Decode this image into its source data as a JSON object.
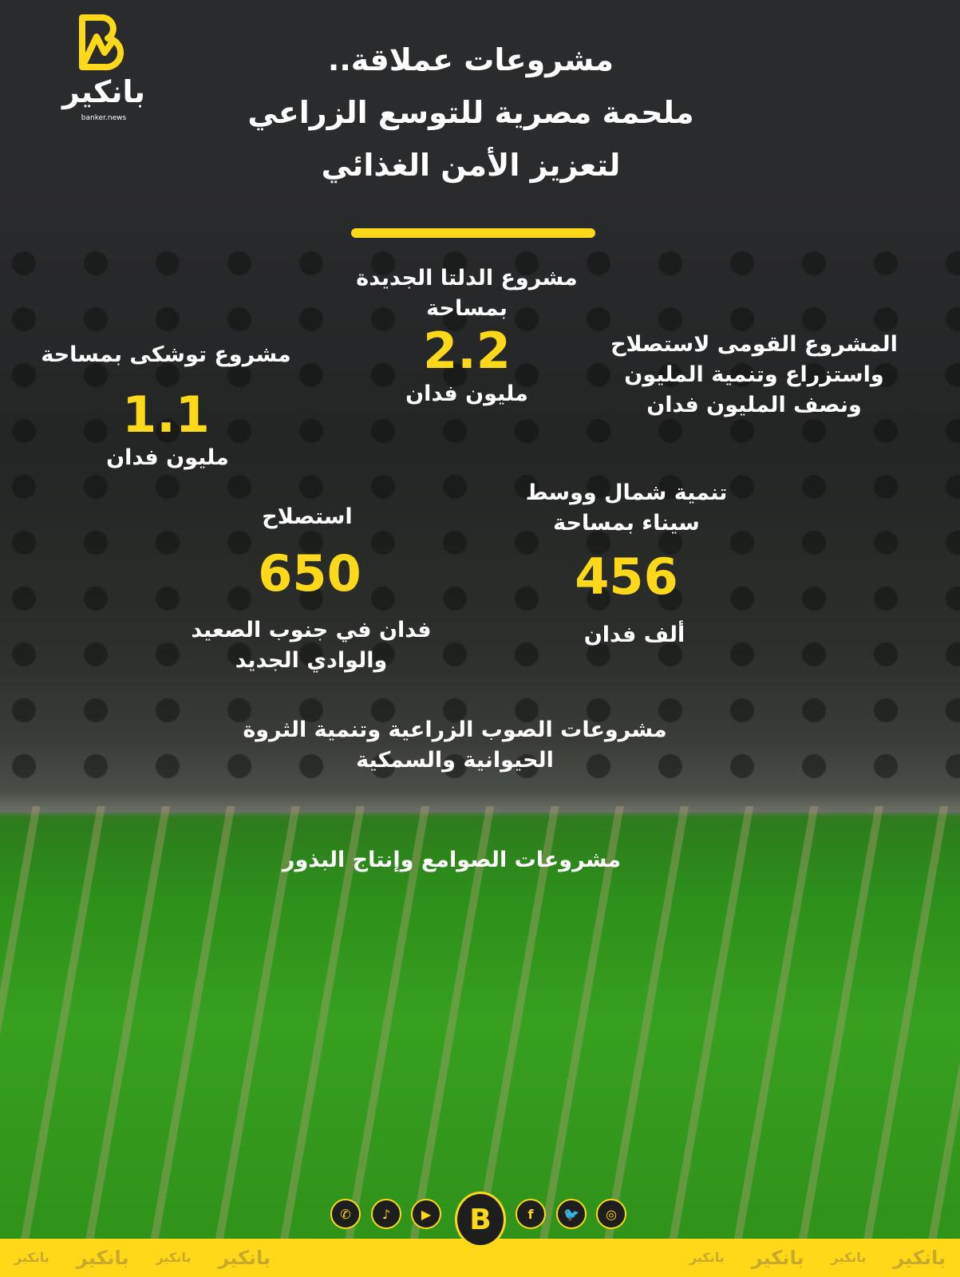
{
  "brand": {
    "name_ar": "بانكير",
    "domain": "banker.news",
    "mark": "B",
    "accent": "#ffd81a"
  },
  "title": [
    "مشروعات عملاقة..",
    "ملحمة مصرية للتوسع الزراعي",
    "لتعزيز الأمن الغذائي"
  ],
  "delta": {
    "label": [
      "مشروع الدلتا الجديدة",
      "بمساحة"
    ],
    "value": "2.2",
    "unit": "مليون فدان"
  },
  "national": {
    "label": [
      "المشروع القومى لاستصلاح",
      "واستزراع وتنمية المليون",
      "ونصف المليون فدان"
    ]
  },
  "toshka": {
    "label": "مشروع توشكى بمساحة",
    "value": "1.1",
    "unit": "مليون فدان"
  },
  "sinai": {
    "label": [
      "تنمية شمال ووسط",
      "سيناء بمساحة"
    ],
    "value": "456",
    "unit": "ألف فدان"
  },
  "upper": {
    "label": "استصلاح",
    "value": "650",
    "unit": [
      "فدان في جنوب الصعيد",
      "والوادي الجديد"
    ]
  },
  "greenhouses": [
    "مشروعات الصوب الزراعية وتنمية الثروة",
    "الحيوانية والسمكية"
  ],
  "silos": "مشروعات الصوامع وإنتاج البذور",
  "social": [
    {
      "icon": "whatsapp-icon",
      "glyph": "✆"
    },
    {
      "icon": "tiktok-icon",
      "glyph": "♪"
    },
    {
      "icon": "youtube-icon",
      "glyph": "▶"
    },
    {
      "icon": "facebook-icon",
      "glyph": "f"
    },
    {
      "icon": "twitter-icon",
      "glyph": "🐦"
    },
    {
      "icon": "instagram-icon",
      "glyph": "◎"
    }
  ]
}
